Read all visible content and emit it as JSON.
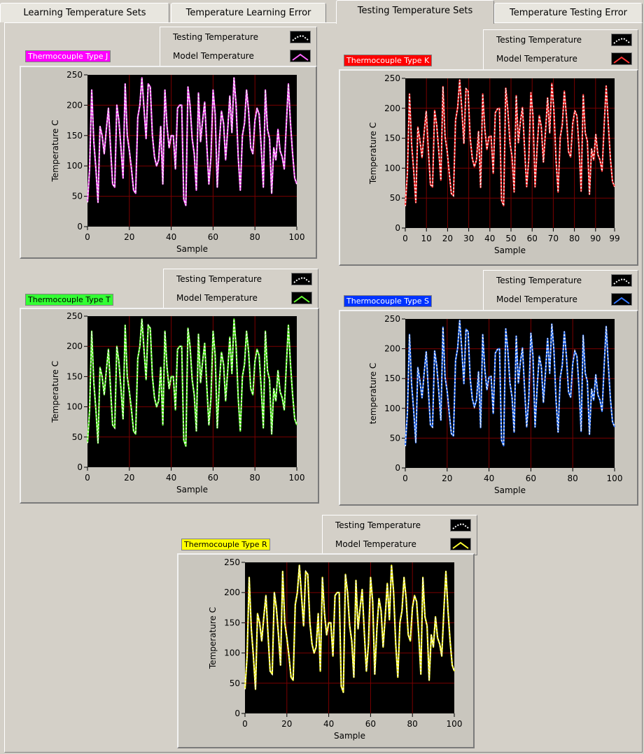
{
  "tabs": [
    {
      "label": "Learning Temperature Sets",
      "active": false
    },
    {
      "label": "Temperature Learning Error",
      "active": false
    },
    {
      "label": "Testing Temperature Sets",
      "active": true
    },
    {
      "label": "Temperature Testing Error",
      "active": false
    }
  ],
  "legend_labels": {
    "testing": "Testing Temperature",
    "model": "Model Temperature"
  },
  "graphs": [
    {
      "id": "j",
      "title": "Thermocouple Type J",
      "title_bg": "#ff00ff",
      "title_fg": "#ffffff",
      "color": "#ff66ff",
      "ylabel": "Temperature C",
      "xlabel": "Sample",
      "xticks": [
        "0",
        "20",
        "40",
        "60",
        "80",
        "100"
      ],
      "yticks": [
        "0",
        "50",
        "100",
        "150",
        "200",
        "250"
      ]
    },
    {
      "id": "k",
      "title": "Thermocouple Type K",
      "title_bg": "#ff0000",
      "title_fg": "#ffffff",
      "color": "#ff3333",
      "ylabel": "Temperature C",
      "xlabel": "Sample",
      "xticks": [
        "0",
        "10",
        "20",
        "30",
        "40",
        "50",
        "60",
        "70",
        "80",
        "90",
        "99"
      ],
      "yticks": [
        "0",
        "50",
        "100",
        "150",
        "200",
        "250"
      ]
    },
    {
      "id": "t",
      "title": "Thermocouple Type T",
      "title_bg": "#33ff33",
      "title_fg": "#000000",
      "color": "#66ff33",
      "ylabel": "Temperature C",
      "xlabel": "Sample",
      "xticks": [
        "0",
        "20",
        "40",
        "60",
        "80",
        "100"
      ],
      "yticks": [
        "0",
        "50",
        "100",
        "150",
        "200",
        "250"
      ]
    },
    {
      "id": "s",
      "title": "Thermocouple Type S",
      "title_bg": "#0033ff",
      "title_fg": "#ffffff",
      "color": "#3377ff",
      "ylabel": "temperature C",
      "xlabel": "Sample",
      "xticks": [
        "0",
        "20",
        "40",
        "60",
        "80",
        "100"
      ],
      "yticks": [
        "0",
        "50",
        "100",
        "150",
        "200",
        "250"
      ]
    },
    {
      "id": "r",
      "title": "Thermocouple Type R",
      "title_bg": "#ffff00",
      "title_fg": "#000000",
      "color": "#ffff33",
      "ylabel": "Temperature C",
      "xlabel": "Sample",
      "xticks": [
        "0",
        "20",
        "40",
        "60",
        "80",
        "100"
      ],
      "yticks": [
        "0",
        "50",
        "100",
        "150",
        "200",
        "250"
      ]
    }
  ],
  "chart_data": [
    {
      "type": "line",
      "title": "Thermocouple Type J",
      "xlabel": "Sample",
      "ylabel": "Temperature C",
      "xlim": [
        0,
        100
      ],
      "ylim": [
        0,
        250
      ],
      "grid": true,
      "series": [
        {
          "name": "Testing Temperature",
          "color": "#ffffff"
        },
        {
          "name": "Model Temperature",
          "color": "#ff66ff"
        }
      ],
      "x": [
        0,
        1,
        2,
        3,
        4,
        5,
        6,
        7,
        8,
        9,
        10,
        11,
        12,
        13,
        14,
        15,
        16,
        17,
        18,
        19,
        20,
        21,
        22,
        23,
        24,
        25,
        26,
        27,
        28,
        29,
        30,
        31,
        32,
        33,
        34,
        35,
        36,
        37,
        38,
        39,
        40,
        41,
        42,
        43,
        44,
        45,
        46,
        47,
        48,
        49,
        50,
        51,
        52,
        53,
        54,
        55,
        56,
        57,
        58,
        59,
        60,
        61,
        62,
        63,
        64,
        65,
        66,
        67,
        68,
        69,
        70,
        71,
        72,
        73,
        74,
        75,
        76,
        77,
        78,
        79,
        80,
        81,
        82,
        83,
        84,
        85,
        86,
        87,
        88,
        89,
        90,
        91,
        92,
        93,
        94,
        95,
        96,
        97,
        98,
        99,
        100
      ],
      "values": [
        40,
        95,
        225,
        140,
        95,
        40,
        165,
        150,
        120,
        160,
        195,
        130,
        70,
        65,
        200,
        175,
        130,
        80,
        235,
        150,
        125,
        95,
        60,
        55,
        180,
        200,
        245,
        195,
        145,
        235,
        230,
        150,
        115,
        100,
        110,
        165,
        70,
        225,
        165,
        130,
        150,
        150,
        95,
        195,
        200,
        200,
        45,
        35,
        230,
        200,
        145,
        120,
        60,
        220,
        140,
        175,
        205,
        135,
        70,
        115,
        225,
        185,
        65,
        140,
        190,
        170,
        110,
        160,
        215,
        155,
        245,
        200,
        115,
        60,
        150,
        170,
        225,
        190,
        130,
        120,
        175,
        195,
        185,
        130,
        65,
        225,
        160,
        145,
        55,
        130,
        110,
        160,
        125,
        115,
        95,
        170,
        235,
        170,
        120,
        80,
        70
      ]
    },
    {
      "type": "line",
      "title": "Thermocouple Type K",
      "xlabel": "Sample",
      "ylabel": "Temperature C",
      "xlim": [
        0,
        99
      ],
      "ylim": [
        0,
        250
      ],
      "grid": true,
      "series": [
        {
          "name": "Testing Temperature",
          "color": "#ffffff"
        },
        {
          "name": "Model Temperature",
          "color": "#ff3333"
        }
      ]
    },
    {
      "type": "line",
      "title": "Thermocouple Type T",
      "xlabel": "Sample",
      "ylabel": "Temperature C",
      "xlim": [
        0,
        100
      ],
      "ylim": [
        0,
        250
      ],
      "grid": true,
      "series": [
        {
          "name": "Testing Temperature",
          "color": "#ffffff"
        },
        {
          "name": "Model Temperature",
          "color": "#66ff33"
        }
      ]
    },
    {
      "type": "line",
      "title": "Thermocouple Type S",
      "xlabel": "Sample",
      "ylabel": "temperature C",
      "xlim": [
        0,
        100
      ],
      "ylim": [
        0,
        250
      ],
      "grid": true,
      "series": [
        {
          "name": "Testing Temperature",
          "color": "#ffffff"
        },
        {
          "name": "Model Temperature",
          "color": "#3377ff"
        }
      ]
    },
    {
      "type": "line",
      "title": "Thermocouple Type R",
      "xlabel": "Sample",
      "ylabel": "Temperature C",
      "xlim": [
        0,
        100
      ],
      "ylim": [
        0,
        250
      ],
      "grid": true,
      "series": [
        {
          "name": "Testing Temperature",
          "color": "#ffffff"
        },
        {
          "name": "Model Temperature",
          "color": "#ffff33"
        }
      ]
    }
  ]
}
